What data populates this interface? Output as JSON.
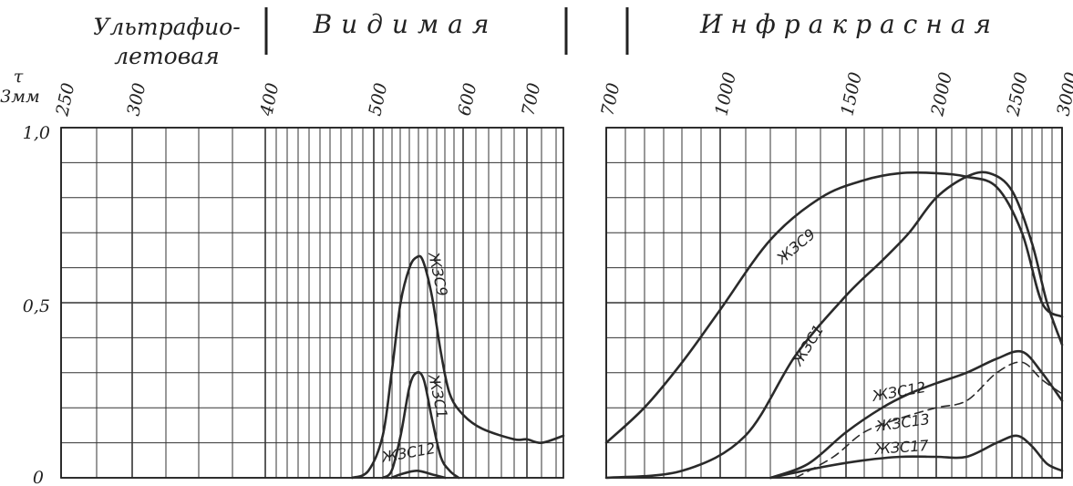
{
  "chart_data": [
    {
      "type": "line",
      "region_labels": {
        "uv_line1": "Ультрафио-",
        "uv_line2": "летовая",
        "visible": "Видимая"
      },
      "ylabel": "τ",
      "ylabel_unit": "3мм",
      "ylim": [
        0,
        1
      ],
      "y_ticks": [
        "0",
        "0,5",
        "1,0"
      ],
      "xlim": [
        250,
        750
      ],
      "x_ticks": [
        "250",
        "300",
        "400",
        "500",
        "600",
        "700"
      ],
      "grid": true,
      "series": [
        {
          "name": "ЖЗС9",
          "points": [
            [
              480,
              0
            ],
            [
              495,
              0.02
            ],
            [
              510,
              0.12
            ],
            [
              520,
              0.3
            ],
            [
              530,
              0.5
            ],
            [
              540,
              0.6
            ],
            [
              548,
              0.63
            ],
            [
              555,
              0.62
            ],
            [
              565,
              0.52
            ],
            [
              575,
              0.36
            ],
            [
              585,
              0.24
            ],
            [
              600,
              0.18
            ],
            [
              630,
              0.14
            ],
            [
              680,
              0.11
            ],
            [
              700,
              0.11
            ],
            [
              720,
              0.1
            ],
            [
              750,
              0.12
            ]
          ]
        },
        {
          "name": "ЖЗС1",
          "points": [
            [
              510,
              0
            ],
            [
              520,
              0.02
            ],
            [
              530,
              0.12
            ],
            [
              540,
              0.26
            ],
            [
              548,
              0.3
            ],
            [
              556,
              0.28
            ],
            [
              565,
              0.17
            ],
            [
              575,
              0.06
            ],
            [
              585,
              0.02
            ],
            [
              595,
              0
            ]
          ]
        },
        {
          "name": "ЖЗС12",
          "points": [
            [
              520,
              0
            ],
            [
              530,
              0.01
            ],
            [
              548,
              0.02
            ],
            [
              565,
              0.01
            ],
            [
              580,
              0
            ]
          ]
        }
      ]
    },
    {
      "type": "line",
      "region_labels": {
        "ir": "Инфракрасная"
      },
      "xlim": [
        700,
        3000
      ],
      "x_ticks": [
        "700",
        "1000",
        "1500",
        "2000",
        "2500",
        "3000"
      ],
      "ylim": [
        0,
        1
      ],
      "grid": true,
      "series": [
        {
          "name": "ЖЗС9",
          "points": [
            [
              700,
              0.1
            ],
            [
              800,
              0.2
            ],
            [
              900,
              0.33
            ],
            [
              1000,
              0.48
            ],
            [
              1200,
              0.68
            ],
            [
              1400,
              0.8
            ],
            [
              1600,
              0.85
            ],
            [
              1800,
              0.87
            ],
            [
              2000,
              0.87
            ],
            [
              2200,
              0.86
            ],
            [
              2400,
              0.83
            ],
            [
              2600,
              0.7
            ],
            [
              2800,
              0.5
            ],
            [
              3000,
              0.46
            ]
          ]
        },
        {
          "name": "ЖЗС1",
          "points": [
            [
              700,
              0
            ],
            [
              900,
              0.02
            ],
            [
              1100,
              0.12
            ],
            [
              1300,
              0.35
            ],
            [
              1500,
              0.52
            ],
            [
              1700,
              0.62
            ],
            [
              1850,
              0.7
            ],
            [
              2000,
              0.8
            ],
            [
              2200,
              0.86
            ],
            [
              2350,
              0.87
            ],
            [
              2500,
              0.82
            ],
            [
              2700,
              0.67
            ],
            [
              2850,
              0.5
            ],
            [
              3000,
              0.38
            ]
          ]
        },
        {
          "name": "ЖЗС12",
          "points": [
            [
              1200,
              0
            ],
            [
              1350,
              0.04
            ],
            [
              1500,
              0.13
            ],
            [
              1700,
              0.2
            ],
            [
              1850,
              0.24
            ],
            [
              2000,
              0.27
            ],
            [
              2200,
              0.3
            ],
            [
              2400,
              0.34
            ],
            [
              2600,
              0.36
            ],
            [
              2800,
              0.3
            ],
            [
              3000,
              0.22
            ]
          ]
        },
        {
          "name": "ЖЗС13",
          "points": [
            [
              1300,
              0
            ],
            [
              1450,
              0.06
            ],
            [
              1600,
              0.13
            ],
            [
              1800,
              0.17
            ],
            [
              2000,
              0.2
            ],
            [
              2200,
              0.22
            ],
            [
              2400,
              0.3
            ],
            [
              2600,
              0.33
            ],
            [
              2800,
              0.28
            ],
            [
              3000,
              0.24
            ]
          ]
        },
        {
          "name": "ЖЗС17",
          "points": [
            [
              1200,
              0
            ],
            [
              1400,
              0.03
            ],
            [
              1600,
              0.05
            ],
            [
              1800,
              0.06
            ],
            [
              2000,
              0.06
            ],
            [
              2200,
              0.06
            ],
            [
              2400,
              0.1
            ],
            [
              2550,
              0.12
            ],
            [
              2700,
              0.09
            ],
            [
              2850,
              0.04
            ],
            [
              3000,
              0.02
            ]
          ]
        }
      ]
    }
  ]
}
